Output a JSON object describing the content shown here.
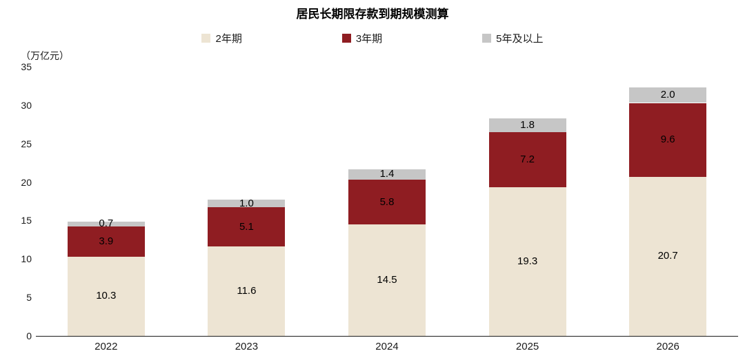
{
  "title": "居民长期限存款到期规模测算",
  "y_axis_unit": "（万亿元）",
  "legend": [
    {
      "label": "2年期",
      "color": "#EDE4D3"
    },
    {
      "label": "3年期",
      "color": "#8F1D22"
    },
    {
      "label": "5年及以上",
      "color": "#C6C6C6"
    }
  ],
  "chart_data": {
    "type": "bar",
    "stacked": true,
    "title": "居民长期限存款到期规模测算",
    "ylabel": "（万亿元）",
    "categories": [
      "2022",
      "2023",
      "2024",
      "2025",
      "2026"
    ],
    "series": [
      {
        "name": "2年期",
        "color": "#EDE4D3",
        "values": [
          10.3,
          11.6,
          14.5,
          19.3,
          20.7
        ]
      },
      {
        "name": "3年期",
        "color": "#8F1D22",
        "values": [
          3.9,
          5.1,
          5.8,
          7.2,
          9.6
        ]
      },
      {
        "name": "5年及以上",
        "color": "#C6C6C6",
        "values": [
          0.7,
          1.0,
          1.4,
          1.8,
          2.0
        ]
      }
    ],
    "totals": [
      14.9,
      17.7,
      21.7,
      28.3,
      32.3
    ],
    "ylim": [
      0,
      35
    ],
    "yticks": [
      0,
      5,
      10,
      15,
      20,
      25,
      30,
      35
    ],
    "grid": false,
    "legend_position": "top"
  }
}
